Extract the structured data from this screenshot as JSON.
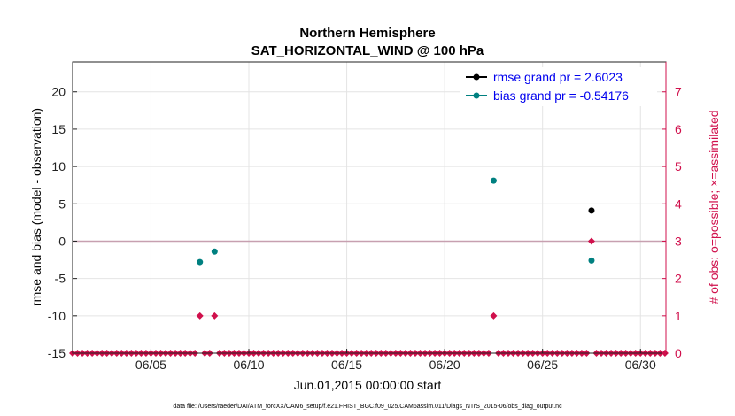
{
  "chart_data": {
    "type": "scatter",
    "title": "Northern Hemisphere",
    "subtitle": "SAT_HORIZONTAL_WIND @ 100 hPa",
    "xlabel": "Jun.01,2015 00:00:00 start",
    "ylabel": "rmse and bias (model - observation)",
    "ylabel_right": "# of obs: o=possible; ×=assimilated",
    "xlim": [
      1,
      31.3
    ],
    "ylim": [
      -15,
      24
    ],
    "ylim_right": [
      0,
      7.8
    ],
    "x_ticks": [
      5,
      10,
      15,
      20,
      25,
      30
    ],
    "x_tick_labels": [
      "06/05",
      "06/10",
      "06/15",
      "06/20",
      "06/25",
      "06/30"
    ],
    "y_ticks": [
      -15,
      -10,
      -5,
      0,
      5,
      10,
      15,
      20
    ],
    "y_tick_labels": [
      "-15",
      "-10",
      "-5",
      "0",
      "5",
      "10",
      "15",
      "20"
    ],
    "y_right_ticks": [
      0,
      1,
      2,
      3,
      4,
      5,
      6,
      7
    ],
    "y_right_tick_labels": [
      "0",
      "1",
      "2",
      "3",
      "4",
      "5",
      "6",
      "7"
    ],
    "grid": true,
    "legend_position": "top-right",
    "series": [
      {
        "name": "rmse grand pr = 2.6023",
        "color": "#000000",
        "axis": "left",
        "marker": "circle",
        "points": [
          {
            "x": 27.5,
            "y": 4.1
          }
        ]
      },
      {
        "name": "bias grand pr = -0.54176",
        "color": "#008080",
        "axis": "left",
        "marker": "circle",
        "points": [
          {
            "x": 7.5,
            "y": -2.8
          },
          {
            "x": 8.25,
            "y": -1.4
          },
          {
            "x": 22.5,
            "y": 8.1
          },
          {
            "x": 27.5,
            "y": -2.6
          }
        ]
      },
      {
        "name": "obs possible",
        "color": "#d0104c",
        "axis": "right",
        "marker": "diamond",
        "points": [
          {
            "x": 7.5,
            "y": 1
          },
          {
            "x": 8.25,
            "y": 1
          },
          {
            "x": 22.5,
            "y": 1
          },
          {
            "x": 27.5,
            "y": 3
          }
        ],
        "zero_range": [
          1,
          31.3
        ],
        "zero_step": 0.25
      }
    ],
    "zero_line": {
      "y": 0,
      "color": "#c7a0b0"
    },
    "footer": "data file: /Users/raeder/DAI/ATM_forcXX/CAM6_setup/f.e21.FHIST_BGC.f09_025.CAM6assim.011/Diags_NTrS_2015-06/obs_diag_output.nc"
  }
}
